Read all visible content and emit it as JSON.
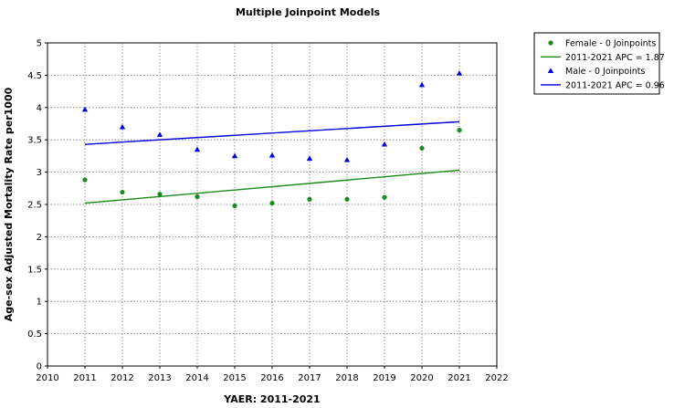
{
  "chart_data": {
    "type": "scatter",
    "title": "Multiple Joinpoint Models",
    "xlabel": "YAER: 2011-2021",
    "ylabel": "Age-sex Adjusted  Mortality Rate per1000",
    "xlim": [
      2010,
      2022
    ],
    "ylim": [
      0,
      5
    ],
    "x_ticks": [
      "2010",
      "2011",
      "2012",
      "2013",
      "2014",
      "2015",
      "2016",
      "2017",
      "2018",
      "2019",
      "2020",
      "2021",
      "2022"
    ],
    "y_ticks": [
      "0",
      "0.5",
      "1",
      "1.5",
      "2",
      "2.5",
      "3",
      "3.5",
      "4",
      "4.5",
      "5"
    ],
    "grid": true,
    "legend_position": "top-right outside",
    "series": [
      {
        "name": "Female - 0 Joinpoints",
        "marker": "circle",
        "color": "#1a8a1a",
        "x": [
          2011,
          2012,
          2013,
          2014,
          2015,
          2016,
          2017,
          2018,
          2019,
          2020,
          2021
        ],
        "values": [
          2.88,
          2.69,
          2.66,
          2.62,
          2.48,
          2.52,
          2.58,
          2.58,
          2.61,
          3.37,
          3.65
        ]
      },
      {
        "name": "2011-2021 APC  = 1.87",
        "kind": "fit_line",
        "color": "#1a8a1a",
        "x": [
          2011,
          2021
        ],
        "values": [
          2.52,
          3.03
        ]
      },
      {
        "name": "Male - 0 Joinpoints",
        "marker": "triangle",
        "color": "#0000dd",
        "x": [
          2011,
          2012,
          2013,
          2014,
          2015,
          2016,
          2017,
          2018,
          2019,
          2020,
          2021
        ],
        "values": [
          3.97,
          3.7,
          3.58,
          3.35,
          3.25,
          3.26,
          3.21,
          3.19,
          3.43,
          4.35,
          4.53
        ]
      },
      {
        "name": "2011-2021 APC  = 0.96",
        "kind": "fit_line",
        "color": "#0000dd",
        "x": [
          2011,
          2021
        ],
        "values": [
          3.43,
          3.78
        ]
      }
    ]
  }
}
